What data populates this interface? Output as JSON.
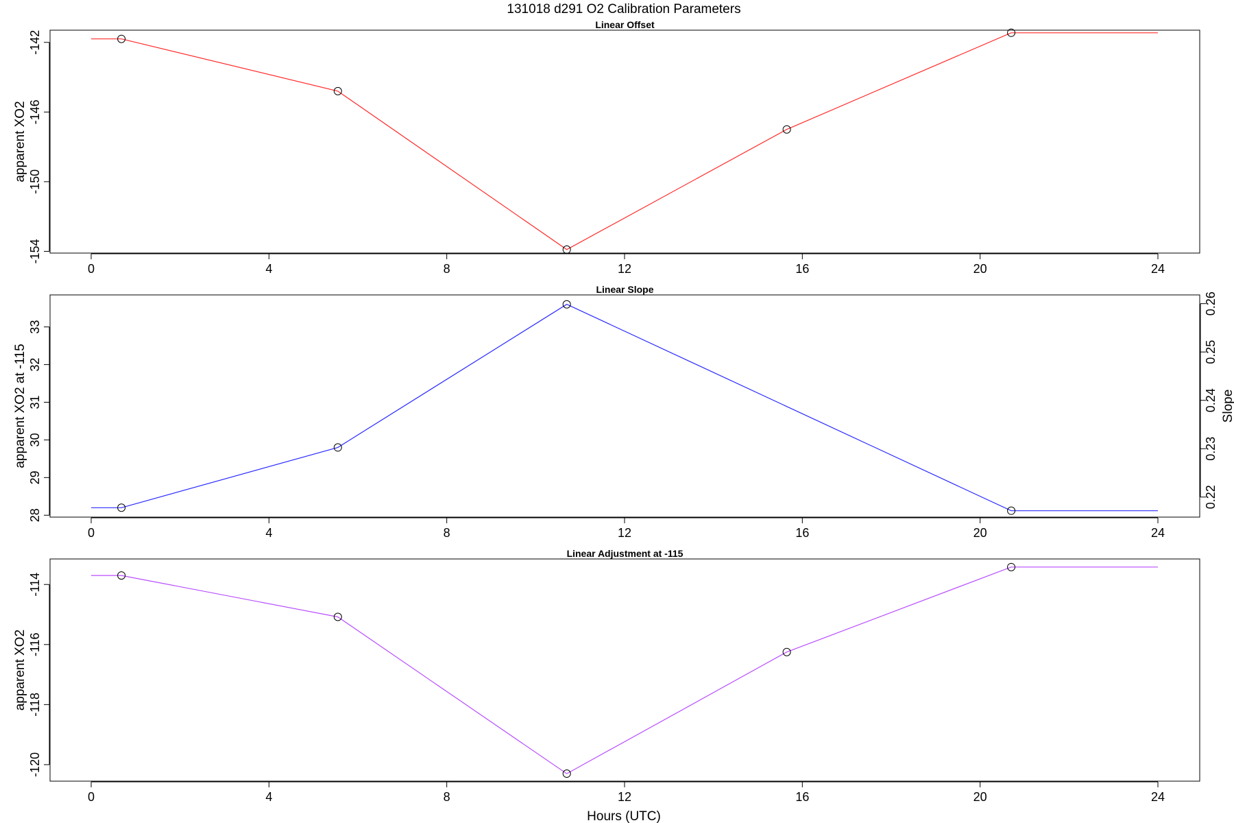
{
  "figure": {
    "title": "131018   d291   O2 Calibration Parameters",
    "xlabel": "Hours (UTC)"
  },
  "chart_data": [
    {
      "type": "line",
      "title": "Linear Offset",
      "xlabel": "",
      "ylabel": "apparent XO2",
      "xlim": [
        0,
        24
      ],
      "ylim": [
        -154.1,
        -141.3
      ],
      "xticks": [
        0,
        4,
        8,
        12,
        16,
        20,
        24
      ],
      "yticks": [
        -142,
        -146,
        -150,
        -154
      ],
      "color": "#ff2a2a",
      "line_x": [
        0,
        0.68,
        5.55,
        10.7,
        15.65,
        20.7,
        24
      ],
      "line_y": [
        -141.8,
        -141.8,
        -144.8,
        -153.9,
        -147.0,
        -141.45,
        -141.45
      ],
      "marker_x": [
        0.68,
        5.55,
        10.7,
        15.65,
        20.7
      ],
      "marker_y": [
        -141.8,
        -144.8,
        -153.9,
        -147.0,
        -141.45
      ]
    },
    {
      "type": "line",
      "title": "Linear Slope",
      "xlabel": "",
      "ylabel": "apparent XO2 at -115",
      "y2label": "Slope",
      "xlim": [
        0,
        24
      ],
      "ylim": [
        27.95,
        33.85
      ],
      "y2lim": [
        0.21585,
        0.2618
      ],
      "xticks": [
        0,
        4,
        8,
        12,
        16,
        20,
        24
      ],
      "yticks": [
        28,
        29,
        30,
        31,
        32,
        33
      ],
      "y2ticks": [
        0.22,
        0.23,
        0.24,
        0.25,
        0.26
      ],
      "color": "#2a2aff",
      "line_x": [
        0,
        0.68,
        5.55,
        10.7,
        20.7,
        24
      ],
      "line_y": [
        28.2,
        28.2,
        29.8,
        33.6,
        28.12,
        28.12
      ],
      "marker_x": [
        0.68,
        5.55,
        10.7,
        20.7
      ],
      "marker_y": [
        28.2,
        29.8,
        33.6,
        28.12
      ]
    },
    {
      "type": "line",
      "title": "Linear Adjustment at -115",
      "xlabel": "Hours (UTC)",
      "ylabel": "apparent XO2",
      "xlim": [
        0,
        24
      ],
      "ylim": [
        -120.55,
        -113.15
      ],
      "xticks": [
        0,
        4,
        8,
        12,
        16,
        20,
        24
      ],
      "yticks": [
        -114,
        -116,
        -118,
        -120
      ],
      "color": "#b84dff",
      "line_x": [
        0,
        0.68,
        5.55,
        10.7,
        15.65,
        20.7,
        24
      ],
      "line_y": [
        -113.7,
        -113.7,
        -115.08,
        -120.3,
        -116.25,
        -113.42,
        -113.42
      ],
      "marker_x": [
        0.68,
        5.55,
        10.7,
        15.65,
        20.7
      ],
      "marker_y": [
        -113.7,
        -115.08,
        -120.3,
        -116.25,
        -113.42
      ]
    }
  ]
}
